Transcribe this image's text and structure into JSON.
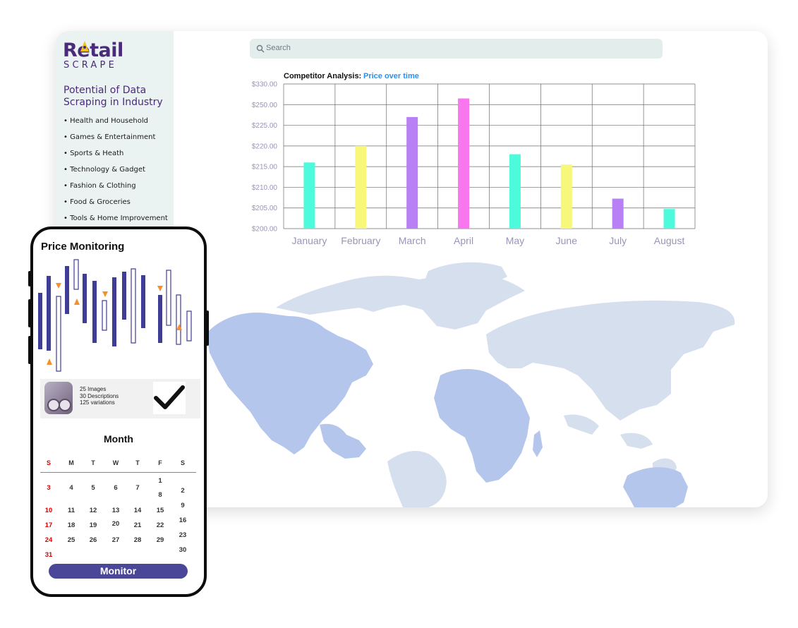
{
  "brand": {
    "logo_top": "Retail",
    "logo_bottom": "SCRAPE",
    "accent": "#4b2a7d",
    "logo_mark": "#f0c020"
  },
  "sidebar": {
    "title": "Potential of Data Scraping in Industry",
    "items": [
      "• Health and Household",
      "• Games & Entertainment",
      "• Sports & Heath",
      "• Technology & Gadget",
      "• Fashion & Clothing",
      "• Food & Groceries",
      "• Tools & Home Improvement"
    ]
  },
  "search": {
    "placeholder": "Search",
    "icon": "search-icon"
  },
  "chart_data": {
    "type": "bar",
    "title": "Competitor Analysis:",
    "subtitle": "Price over time",
    "categories": [
      "January",
      "February",
      "March",
      "April",
      "May",
      "June",
      "July",
      "August"
    ],
    "yticks": [
      "$330.00",
      "$250.00",
      "$225.00",
      "$220.00",
      "$215.00",
      "$210.00",
      "$205.00",
      "$200.00"
    ],
    "values_in_tick_units": [
      3.2,
      4.0,
      5.4,
      6.3,
      3.6,
      3.1,
      1.45,
      0.95
    ],
    "colors": [
      "#4dfbdc",
      "#f7f77a",
      "#b97ff5",
      "#f877ee",
      "#4dfbdc",
      "#f7f77a",
      "#b97ff5",
      "#4dfbdc"
    ],
    "grid": true
  },
  "map": {
    "highlight_color": "#b4c6ec",
    "base_color": "#d6dfee"
  },
  "phone": {
    "title": "Price Monitoring",
    "product": {
      "line1": "25 Images",
      "line2": "30 Descriptions",
      "line3": "125 variations",
      "check_icon": "checkmark-icon"
    },
    "calendar": {
      "month": "Month",
      "days": [
        "S",
        "M",
        "T",
        "W",
        "T",
        "F",
        "S"
      ],
      "dates": [
        "3",
        "4",
        "5",
        "6",
        "7",
        "1",
        "8",
        "2",
        "10",
        "11",
        "12",
        "13",
        "14",
        "15",
        "9",
        "17",
        "18",
        "19",
        "20",
        "21",
        "22",
        "16",
        "24",
        "25",
        "26",
        "27",
        "28",
        "29",
        "23",
        "31",
        "30"
      ]
    },
    "button": "Monitor"
  }
}
